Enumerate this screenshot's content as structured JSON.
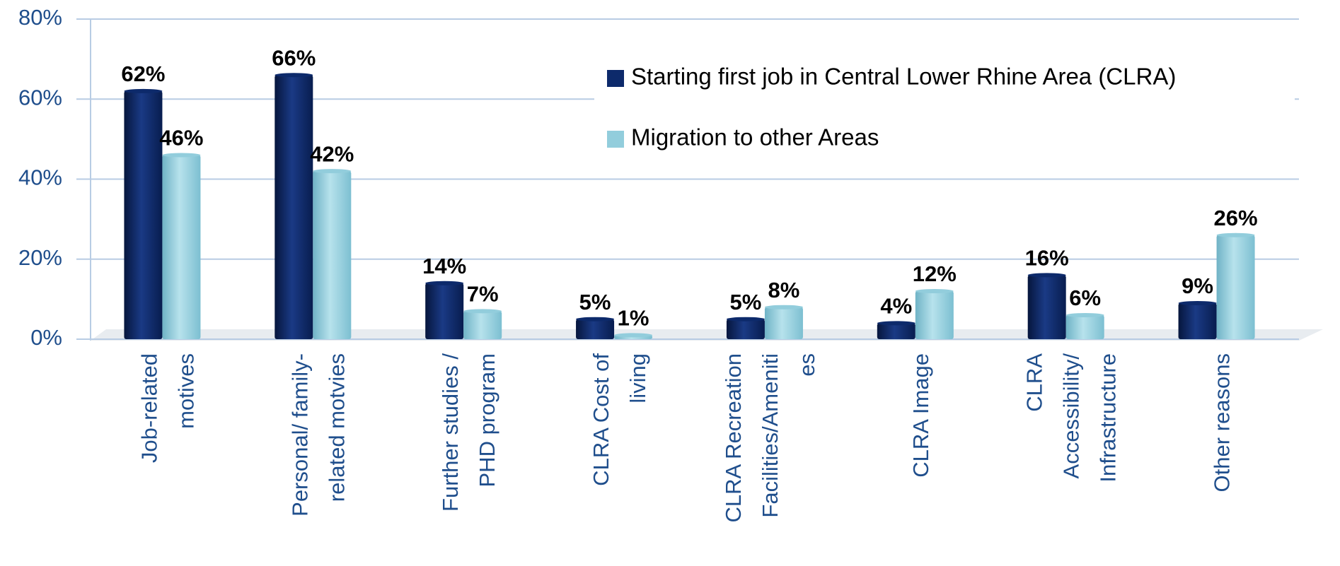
{
  "chart_data": {
    "type": "bar",
    "categories": [
      "Job-related\nmotives",
      "Personal/ family-\nrelated motvies",
      "Further studies /\nPHD program",
      "CLRA Cost of\nliving",
      "CLRA Recreation\nFacilities/Ameniti\nes",
      "CLRA Image",
      "CLRA\nAccessibility/\nInfrastructure",
      "Other reasons"
    ],
    "series": [
      {
        "name": "Starting first job in Central Lower Rhine Area (CLRA)",
        "color": "#0d2a6b",
        "values": [
          62,
          66,
          14,
          5,
          5,
          4,
          16,
          9
        ],
        "value_labels": [
          "62%",
          "66%",
          "14%",
          "5%",
          "5%",
          "4%",
          "16%",
          "9%"
        ]
      },
      {
        "name": "Migration to other Areas",
        "color": "#92cddc",
        "values": [
          46,
          42,
          7,
          1,
          8,
          12,
          6,
          26
        ],
        "value_labels": [
          "46%",
          "42%",
          "7%",
          "1%",
          "8%",
          "12%",
          "6%",
          "26%"
        ]
      }
    ],
    "ylim": [
      0,
      80
    ],
    "yticks": [
      {
        "value": 0,
        "label": "0%"
      },
      {
        "value": 20,
        "label": "20%"
      },
      {
        "value": 40,
        "label": "40%"
      },
      {
        "value": 60,
        "label": "60%"
      },
      {
        "value": 80,
        "label": "80%"
      }
    ],
    "grid": true,
    "legend": "top-right"
  }
}
